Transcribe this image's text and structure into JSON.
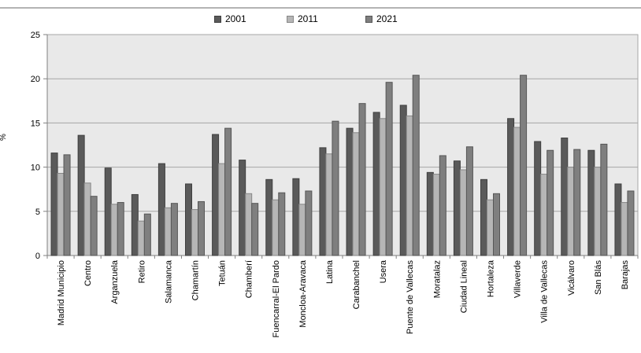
{
  "legend": {
    "items": [
      {
        "label": "2001",
        "x": 272
      },
      {
        "label": "2011",
        "x": 364
      },
      {
        "label": "2021",
        "x": 464
      }
    ]
  },
  "chart_data": {
    "type": "bar",
    "title": "",
    "xlabel": "",
    "ylabel": "%",
    "ylim": [
      0,
      25
    ],
    "yticks": [
      0,
      5,
      10,
      15,
      20,
      25
    ],
    "grid": true,
    "legend_position": "top",
    "plot_bg_color": "#e9e9e9",
    "gridline_color": "#a6a6a6",
    "axis_color": "#808080",
    "categories": [
      "Madrid Municipio",
      "Centro",
      "Arganzuela",
      "Retiro",
      "Salamanca",
      "Chamartín",
      "Tetuán",
      "Chamberí",
      "Fuencarral-El Pardo",
      "Moncloa-Aravaca",
      "Latina",
      "Carabanchel",
      "Usera",
      "Puente de Vallecas",
      "Moratalaz",
      "Ciudad Lineal",
      "Hortaleza",
      "Villaverde",
      "Villa de Vallecas",
      "Vicálvaro",
      "San Blás",
      "Barajas"
    ],
    "series": [
      {
        "name": "2001",
        "color": "#5a5a5a",
        "border": "#3f3f3f",
        "values": [
          11.6,
          13.6,
          9.9,
          6.9,
          10.4,
          8.1,
          13.7,
          10.8,
          8.6,
          8.7,
          12.2,
          14.4,
          16.2,
          17.0,
          9.4,
          10.7,
          8.6,
          15.5,
          12.9,
          13.3,
          11.9,
          8.1
        ]
      },
      {
        "name": "2011",
        "color": "#b6b6b6",
        "border": "#878787",
        "values": [
          9.3,
          8.2,
          5.8,
          3.9,
          5.4,
          5.2,
          10.4,
          7.0,
          6.3,
          5.8,
          11.5,
          13.9,
          15.5,
          15.8,
          9.2,
          9.7,
          6.3,
          14.5,
          9.2,
          10.0,
          10.0,
          6.0
        ]
      },
      {
        "name": "2021",
        "color": "#7f7f7f",
        "border": "#565656",
        "values": [
          11.4,
          6.7,
          6.0,
          4.7,
          5.9,
          6.1,
          14.4,
          5.9,
          7.1,
          7.3,
          15.2,
          17.2,
          19.6,
          20.4,
          11.3,
          12.3,
          7.0,
          20.4,
          11.9,
          12.0,
          12.6,
          7.3
        ]
      }
    ]
  }
}
